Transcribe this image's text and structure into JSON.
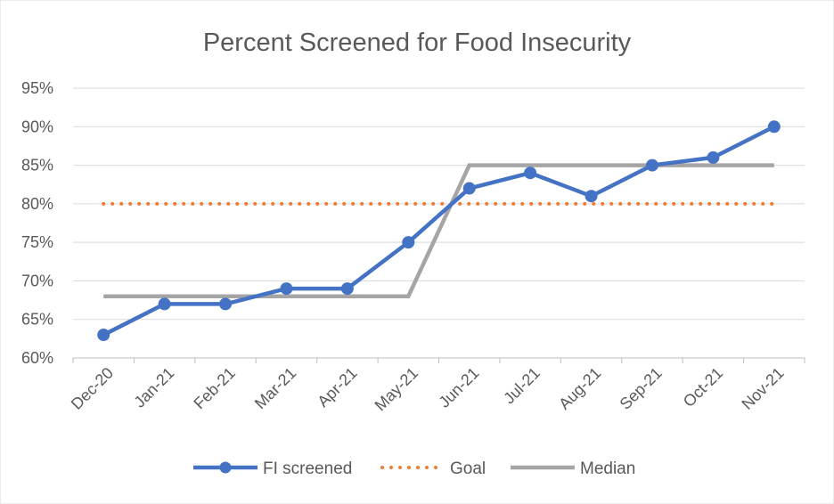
{
  "chart_data": {
    "type": "line",
    "title": "Percent Screened for Food Insecurity",
    "xlabel": "",
    "ylabel": "",
    "categories": [
      "Dec-20",
      "Jan-21",
      "Feb-21",
      "Mar-21",
      "Apr-21",
      "May-21",
      "Jun-21",
      "Jul-21",
      "Aug-21",
      "Sep-21",
      "Oct-21",
      "Nov-21"
    ],
    "ylim": [
      60,
      95
    ],
    "y_ticks": [
      60,
      65,
      70,
      75,
      80,
      85,
      90,
      95
    ],
    "y_tick_labels": [
      "60%",
      "65%",
      "70%",
      "75%",
      "80%",
      "85%",
      "90%",
      "95%"
    ],
    "grid": true,
    "legend_position": "bottom",
    "series": [
      {
        "name": "FI screened",
        "values": [
          63,
          67,
          67,
          69,
          69,
          75,
          82,
          84,
          81,
          85,
          86,
          90
        ],
        "color": "#4472C4",
        "style": "line-markers"
      },
      {
        "name": "Goal",
        "values": [
          80,
          80,
          80,
          80,
          80,
          80,
          80,
          80,
          80,
          80,
          80,
          80
        ],
        "color": "#ED7D31",
        "style": "dotted"
      },
      {
        "name": "Median",
        "values": [
          68,
          68,
          68,
          68,
          68,
          68,
          85,
          85,
          85,
          85,
          85,
          85
        ],
        "color": "#A5A5A5",
        "style": "solid"
      }
    ]
  }
}
